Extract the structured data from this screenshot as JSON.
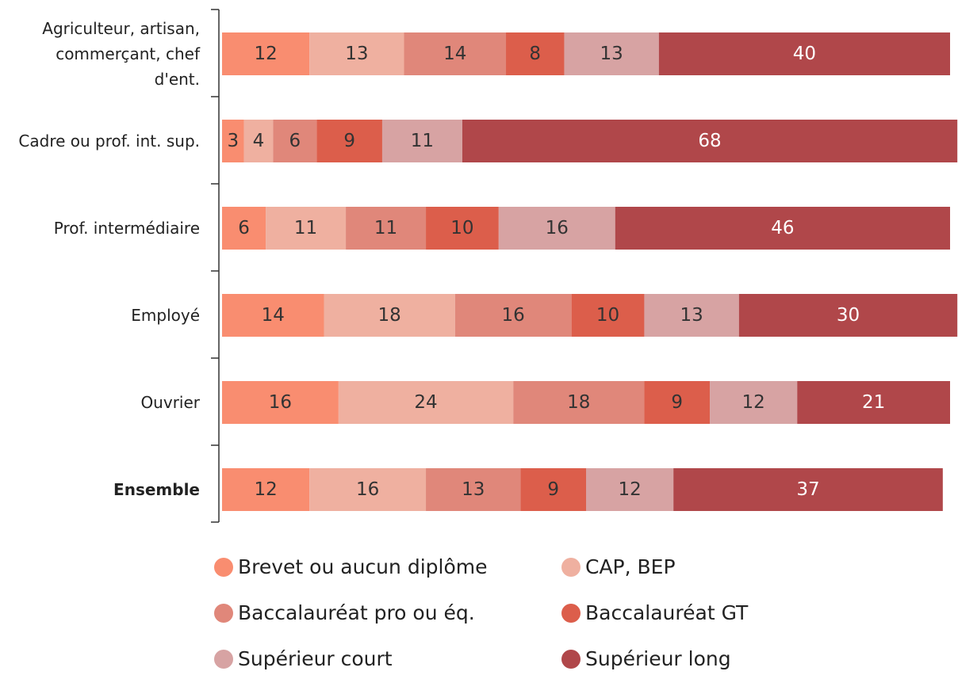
{
  "chart_data": {
    "type": "stacked-bar-horizontal",
    "categories": [
      "Agriculteur, artisan, commerçant, chef d'ent.",
      "Cadre ou prof. int. sup.",
      "Prof. intermédiaire",
      "Employé",
      "Ouvrier",
      "Ensemble"
    ],
    "series": [
      {
        "name": "Brevet ou aucun diplôme",
        "color": "#f98d70",
        "values": [
          12,
          3,
          6,
          14,
          16,
          12
        ]
      },
      {
        "name": "CAP, BEP",
        "color": "#efb0a0",
        "values": [
          13,
          4,
          11,
          18,
          24,
          16
        ]
      },
      {
        "name": "Baccalauréat pro ou éq.",
        "color": "#e0877a",
        "values": [
          14,
          6,
          11,
          16,
          18,
          13
        ]
      },
      {
        "name": "Baccalauréat GT",
        "color": "#dc5e4b",
        "values": [
          8,
          9,
          10,
          10,
          9,
          9
        ]
      },
      {
        "name": "Supérieur court",
        "color": "#d7a3a3",
        "values": [
          13,
          11,
          16,
          13,
          12,
          12
        ]
      },
      {
        "name": "Supérieur long",
        "color": "#b0474a",
        "values": [
          40,
          68,
          46,
          30,
          21,
          37
        ]
      }
    ]
  }
}
